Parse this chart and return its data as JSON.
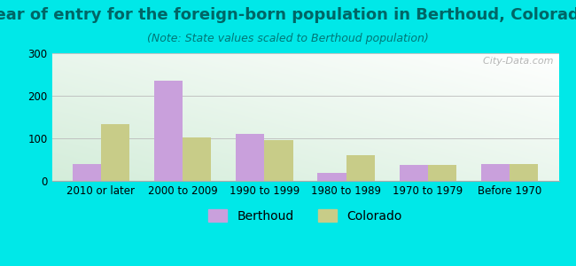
{
  "title": "Year of entry for the foreign-born population in Berthoud, Colorado",
  "subtitle": "(Note: State values scaled to Berthoud population)",
  "categories": [
    "2010 or later",
    "2000 to 2009",
    "1990 to 1999",
    "1980 to 1989",
    "1970 to 1979",
    "Before 1970"
  ],
  "berthoud_values": [
    40,
    235,
    110,
    18,
    37,
    40
  ],
  "colorado_values": [
    133,
    103,
    95,
    60,
    37,
    40
  ],
  "berthoud_color": "#c9a0dc",
  "colorado_color": "#c8cc88",
  "background_outer": "#00e8e8",
  "ylim": [
    0,
    300
  ],
  "yticks": [
    0,
    100,
    200,
    300
  ],
  "bar_width": 0.35,
  "title_fontsize": 13,
  "subtitle_fontsize": 9,
  "axis_fontsize": 8.5,
  "legend_fontsize": 10,
  "watermark": "  City-Data.com"
}
